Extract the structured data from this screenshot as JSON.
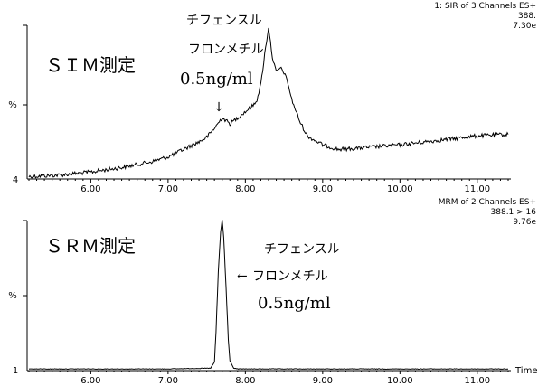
{
  "chart_data": [
    {
      "type": "line",
      "header": [
        "1: SIR of 3 Channels ES+",
        "388.",
        "7.30e"
      ],
      "method_label": "ＳＩＭ測定",
      "annotation": {
        "compound_line1": "チフェンスル",
        "compound_line2": "フロンメチル",
        "concentration": "0.5ng/ml",
        "arrow": "↓"
      },
      "ylabel": "%",
      "y_min_label": "4",
      "xlim": [
        5.2,
        11.4
      ],
      "ylim": [
        0,
        100
      ],
      "x_ticks": [
        "6.00",
        "7.00",
        "8.00",
        "9.00",
        "10.00",
        "11.00"
      ],
      "x_tick_values": [
        6,
        7,
        8,
        9,
        10,
        11
      ],
      "series": [
        {
          "x": [
            5.2,
            5.6,
            6.0,
            6.4,
            6.8,
            7.0,
            7.2,
            7.4,
            7.5,
            7.6,
            7.7,
            7.8,
            7.9,
            8.0,
            8.1,
            8.15,
            8.2,
            8.25,
            8.3,
            8.35,
            8.4,
            8.45,
            8.5,
            8.55,
            8.6,
            8.7,
            8.8,
            9.0,
            9.2,
            9.5,
            10.0,
            10.5,
            11.0,
            11.4
          ],
          "y": [
            1,
            2,
            4,
            7,
            11,
            14,
            19,
            24,
            27,
            33,
            40,
            36,
            40,
            44,
            48,
            52,
            62,
            82,
            100,
            80,
            70,
            73,
            70,
            63,
            52,
            38,
            28,
            22,
            19,
            20,
            22,
            25,
            28,
            29
          ]
        }
      ]
    },
    {
      "type": "line",
      "header": [
        "MRM of 2 Channels ES+",
        "388.1 > 16",
        "9.76e"
      ],
      "method_label": "ＳＲＭ測定",
      "annotation": {
        "compound_line1": "チフェンスル",
        "compound_line2": "フロンメチル",
        "concentration": "0.5ng/ml",
        "arrow": "←"
      },
      "ylabel": "%",
      "y_min_label": "1",
      "xlabel": "Time",
      "xlim": [
        5.2,
        11.4
      ],
      "ylim": [
        0,
        100
      ],
      "x_ticks": [
        "6.00",
        "7.00",
        "8.00",
        "9.00",
        "10.00",
        "11.00"
      ],
      "x_tick_values": [
        6,
        7,
        8,
        9,
        10,
        11
      ],
      "series": [
        {
          "x": [
            5.2,
            7.0,
            7.55,
            7.6,
            7.62,
            7.65,
            7.68,
            7.7,
            7.72,
            7.75,
            7.78,
            7.8,
            7.85,
            7.9,
            8.5,
            11.4
          ],
          "y": [
            0.5,
            0.5,
            1,
            5,
            25,
            65,
            92,
            100,
            88,
            55,
            20,
            6,
            1,
            0.5,
            0.5,
            0.5
          ]
        }
      ]
    }
  ]
}
